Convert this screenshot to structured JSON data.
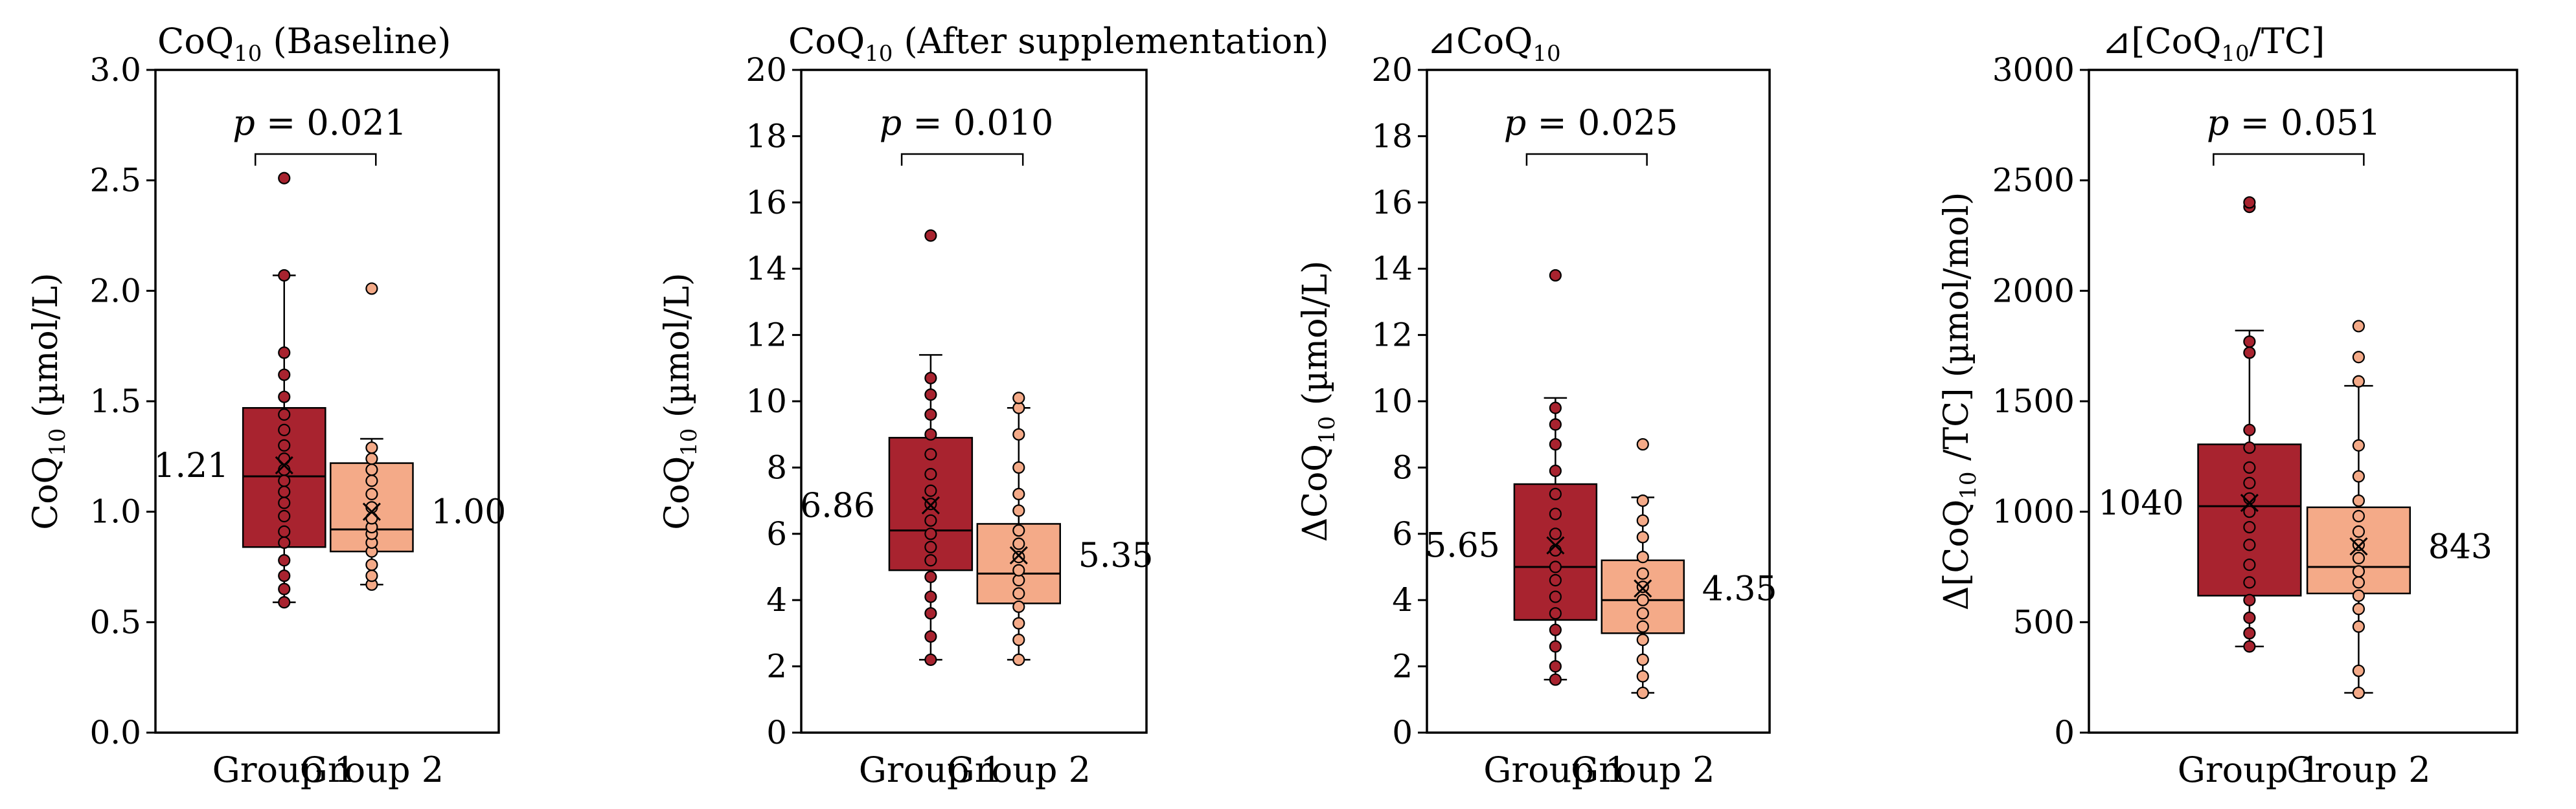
{
  "colors": {
    "group1": "#A8232F",
    "group2": "#F4AA88",
    "line": "#000000"
  },
  "chart_data": [
    {
      "type": "box",
      "title": "CoQ10 (Baseline)",
      "title_parts": {
        "base": "CoQ",
        "sub": "10",
        "rest": " (Baseline)"
      },
      "ylabel": "CoQ10 (µmol/L)",
      "ylabel_parts": {
        "pre": "CoQ",
        "sub": "10",
        "post": " (µmol/L)"
      },
      "ylim": [
        0,
        3.0
      ],
      "yticks": [
        "0.0",
        "0.5",
        "1.0",
        "1.5",
        "2.0",
        "2.5",
        "3.0"
      ],
      "categories": [
        "Group 1",
        "Group 2"
      ],
      "p_value": "p = 0.021",
      "p_prefix": "p",
      "p_rest": " = 0.021",
      "series": [
        {
          "name": "Group 1",
          "mean_label": "1.21",
          "mean": 1.21,
          "q1": 0.84,
          "median": 1.16,
          "q3": 1.47,
          "whisker_low": 0.59,
          "whisker_high": 2.07,
          "points": [
            0.59,
            0.65,
            0.71,
            0.78,
            0.86,
            0.91,
            0.98,
            1.04,
            1.09,
            1.14,
            1.19,
            1.24,
            1.3,
            1.37,
            1.44,
            1.52,
            1.62,
            1.72,
            2.07,
            2.51
          ]
        },
        {
          "name": "Group 2",
          "mean_label": "1.00",
          "mean": 1.0,
          "q1": 0.82,
          "median": 0.92,
          "q3": 1.22,
          "whisker_low": 0.67,
          "whisker_high": 1.33,
          "points": [
            0.67,
            0.71,
            0.76,
            0.82,
            0.86,
            0.9,
            0.93,
            0.97,
            1.02,
            1.08,
            1.14,
            1.19,
            1.24,
            1.29,
            2.01
          ]
        }
      ]
    },
    {
      "type": "box",
      "title": "CoQ10 (After supplementation)",
      "title_parts": {
        "base": "CoQ",
        "sub": "10",
        "rest": " (After supplementation)"
      },
      "ylabel": "CoQ10 (µmol/L)",
      "ylabel_parts": {
        "pre": "CoQ",
        "sub": "10",
        "post": " (µmol/L)"
      },
      "ylim": [
        0,
        20
      ],
      "yticks": [
        "0",
        "2",
        "4",
        "6",
        "8",
        "10",
        "12",
        "14",
        "16",
        "18",
        "20"
      ],
      "categories": [
        "Group 1",
        "Group 2"
      ],
      "p_value": "p = 0.010",
      "p_prefix": "p",
      "p_rest": " = 0.010",
      "series": [
        {
          "name": "Group 1",
          "mean_label": "6.86",
          "mean": 6.86,
          "q1": 4.9,
          "median": 6.1,
          "q3": 8.9,
          "whisker_low": 2.2,
          "whisker_high": 11.4,
          "points": [
            2.2,
            2.9,
            3.6,
            4.1,
            4.7,
            5.2,
            5.6,
            6.0,
            6.4,
            6.9,
            7.3,
            7.8,
            8.4,
            9.0,
            9.6,
            10.2,
            10.7,
            15.0
          ]
        },
        {
          "name": "Group 2",
          "mean_label": "5.35",
          "mean": 5.35,
          "q1": 3.9,
          "median": 4.8,
          "q3": 6.3,
          "whisker_low": 2.2,
          "whisker_high": 9.8,
          "points": [
            2.2,
            2.8,
            3.3,
            3.8,
            4.2,
            4.6,
            4.9,
            5.3,
            5.7,
            6.1,
            6.7,
            7.2,
            8.0,
            9.0,
            9.8,
            10.1
          ]
        }
      ]
    },
    {
      "type": "box",
      "title": "⊿CoQ10",
      "title_parts": {
        "base": "⊿CoQ",
        "sub": "10",
        "rest": ""
      },
      "ylabel": "ΔCoQ10 (µmol/L)",
      "ylabel_parts": {
        "pre": "ΔCoQ",
        "sub": "10",
        "post": " (µmol/L)"
      },
      "ylim": [
        0,
        20
      ],
      "yticks": [
        "0",
        "2",
        "4",
        "6",
        "8",
        "10",
        "12",
        "14",
        "16",
        "18",
        "20"
      ],
      "categories": [
        "Group 1",
        "Group 2"
      ],
      "p_value": "p = 0.025",
      "p_prefix": "p",
      "p_rest": " = 0.025",
      "series": [
        {
          "name": "Group 1",
          "mean_label": "5.65",
          "mean": 5.65,
          "q1": 3.4,
          "median": 5.0,
          "q3": 7.5,
          "whisker_low": 1.6,
          "whisker_high": 10.1,
          "points": [
            1.6,
            2.0,
            2.6,
            3.1,
            3.6,
            4.1,
            4.6,
            5.0,
            5.5,
            6.0,
            6.6,
            7.2,
            7.9,
            8.7,
            9.3,
            9.8,
            13.8
          ]
        },
        {
          "name": "Group 2",
          "mean_label": "4.35",
          "mean": 4.35,
          "q1": 3.0,
          "median": 4.0,
          "q3": 5.2,
          "whisker_low": 1.2,
          "whisker_high": 7.1,
          "points": [
            1.2,
            1.7,
            2.2,
            2.8,
            3.2,
            3.6,
            4.0,
            4.4,
            4.8,
            5.3,
            5.9,
            6.4,
            7.0,
            8.7
          ]
        }
      ]
    },
    {
      "type": "box",
      "title": "⊿[CoQ10/TC]",
      "title_parts": {
        "base": "⊿[CoQ",
        "sub": "10",
        "rest": "/TC]"
      },
      "ylabel": "Δ[CoQ10 /TC] (µmol/mol)",
      "ylabel_parts": {
        "pre": "Δ[CoQ",
        "sub": "10",
        "post": " /TC] (µmol/mol)"
      },
      "ylim": [
        0,
        3000
      ],
      "yticks": [
        "0",
        "500",
        "1000",
        "1500",
        "2000",
        "2500",
        "3000"
      ],
      "categories": [
        "Group 1",
        "Group 2"
      ],
      "p_value": "p = 0.051",
      "p_prefix": "p",
      "p_rest": " = 0.051",
      "series": [
        {
          "name": "Group 1",
          "mean_label": "1040",
          "mean": 1040,
          "q1": 620,
          "median": 1025,
          "q3": 1305,
          "whisker_low": 390,
          "whisker_high": 1820,
          "points": [
            390,
            450,
            520,
            600,
            680,
            760,
            850,
            930,
            1000,
            1060,
            1130,
            1200,
            1290,
            1370,
            1720,
            1770,
            2380,
            2400
          ]
        },
        {
          "name": "Group 2",
          "mean_label": "843",
          "mean": 843,
          "q1": 630,
          "median": 750,
          "q3": 1020,
          "whisker_low": 180,
          "whisker_high": 1570,
          "points": [
            180,
            280,
            480,
            560,
            620,
            680,
            730,
            790,
            850,
            910,
            980,
            1050,
            1160,
            1300,
            1590,
            1700,
            1840
          ]
        }
      ]
    }
  ]
}
